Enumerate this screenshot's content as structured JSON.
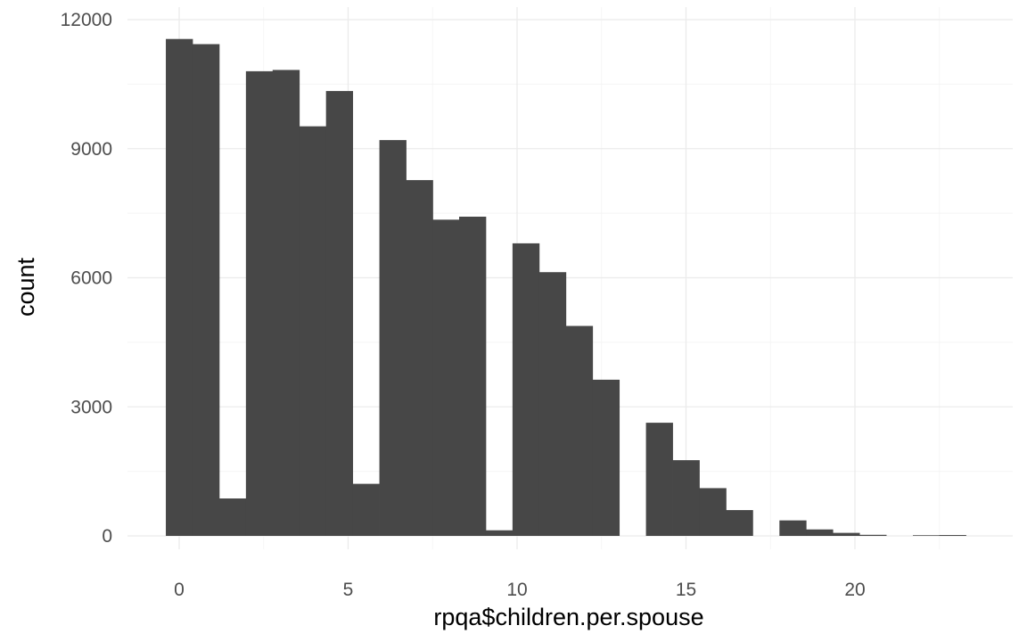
{
  "chart_data": {
    "type": "bar",
    "subtype": "histogram",
    "title": "",
    "xlabel": "rpqa$children.per.spouse",
    "ylabel": "count",
    "xlim": [
      -1.5,
      24.5
    ],
    "ylim": [
      0,
      12000
    ],
    "x_ticks": [
      0,
      5,
      10,
      15,
      20
    ],
    "y_ticks": [
      0,
      3000,
      6000,
      9000,
      12000
    ],
    "bin_width": 0.79,
    "bar_color": "#474747",
    "grid": true,
    "legend": "none",
    "bins": [
      {
        "x": 0.0,
        "count": 11550
      },
      {
        "x": 0.79,
        "count": 11430
      },
      {
        "x": 1.58,
        "count": 870
      },
      {
        "x": 2.37,
        "count": 10800
      },
      {
        "x": 3.16,
        "count": 10830
      },
      {
        "x": 3.95,
        "count": 9520
      },
      {
        "x": 4.74,
        "count": 10340
      },
      {
        "x": 5.53,
        "count": 1210
      },
      {
        "x": 6.32,
        "count": 9200
      },
      {
        "x": 7.11,
        "count": 8270
      },
      {
        "x": 7.89,
        "count": 7350
      },
      {
        "x": 8.68,
        "count": 7420
      },
      {
        "x": 9.47,
        "count": 130
      },
      {
        "x": 10.26,
        "count": 6800
      },
      {
        "x": 11.05,
        "count": 6130
      },
      {
        "x": 11.84,
        "count": 4880
      },
      {
        "x": 12.63,
        "count": 3630
      },
      {
        "x": 13.42,
        "count": 0
      },
      {
        "x": 14.21,
        "count": 2630
      },
      {
        "x": 15.0,
        "count": 1760
      },
      {
        "x": 15.79,
        "count": 1110
      },
      {
        "x": 16.58,
        "count": 600
      },
      {
        "x": 17.37,
        "count": 0
      },
      {
        "x": 18.16,
        "count": 360
      },
      {
        "x": 18.95,
        "count": 150
      },
      {
        "x": 19.74,
        "count": 70
      },
      {
        "x": 20.53,
        "count": 25
      },
      {
        "x": 21.32,
        "count": 0
      },
      {
        "x": 22.11,
        "count": 15
      },
      {
        "x": 22.89,
        "count": 20
      }
    ]
  }
}
